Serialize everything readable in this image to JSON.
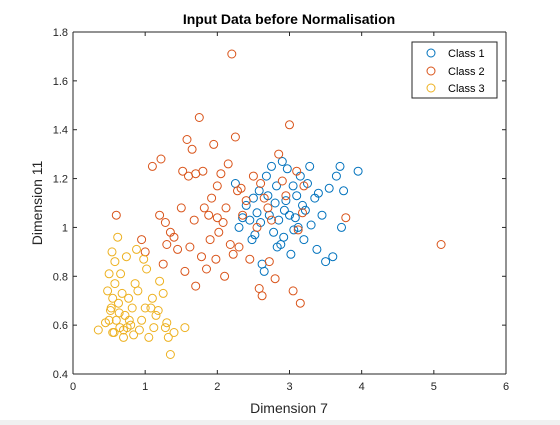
{
  "chart_data": {
    "type": "scatter",
    "title": "Input Data before Normalisation",
    "xlabel": "Dimension 7",
    "ylabel": "Dimension 11",
    "xlim": [
      0,
      6
    ],
    "ylim": [
      0.4,
      1.8
    ],
    "xticks": [
      "0",
      "1",
      "2",
      "3",
      "4",
      "5",
      "6"
    ],
    "yticks": [
      "0.4",
      "0.6",
      "0.8",
      "1",
      "1.2",
      "1.4",
      "1.6",
      "1.8"
    ],
    "grid": false,
    "legend_position": "top-right",
    "series": [
      {
        "name": "Class 1",
        "color": "#0072BD",
        "points": [
          [
            2.3,
            1.0
          ],
          [
            2.35,
            1.04
          ],
          [
            2.4,
            1.09
          ],
          [
            2.45,
            1.03
          ],
          [
            2.5,
            1.12
          ],
          [
            2.52,
            0.97
          ],
          [
            2.55,
            1.06
          ],
          [
            2.58,
            1.15
          ],
          [
            2.6,
            1.02
          ],
          [
            2.62,
            0.85
          ],
          [
            2.65,
            0.82
          ],
          [
            2.68,
            1.21
          ],
          [
            2.7,
            1.13
          ],
          [
            2.72,
            1.05
          ],
          [
            2.75,
            1.25
          ],
          [
            2.78,
            0.98
          ],
          [
            2.8,
            1.1
          ],
          [
            2.82,
            1.17
          ],
          [
            2.85,
            1.03
          ],
          [
            2.88,
            0.93
          ],
          [
            2.9,
            1.27
          ],
          [
            2.92,
            0.96
          ],
          [
            2.95,
            1.11
          ],
          [
            2.97,
            1.24
          ],
          [
            3.0,
            1.05
          ],
          [
            3.02,
            0.89
          ],
          [
            3.05,
            1.17
          ],
          [
            3.08,
            1.04
          ],
          [
            3.1,
            1.13
          ],
          [
            3.12,
            1.0
          ],
          [
            3.15,
            1.21
          ],
          [
            3.18,
            1.09
          ],
          [
            3.2,
            0.95
          ],
          [
            3.22,
            1.07
          ],
          [
            3.25,
            1.18
          ],
          [
            3.28,
            1.25
          ],
          [
            3.3,
            1.01
          ],
          [
            3.35,
            1.12
          ],
          [
            3.38,
            0.91
          ],
          [
            3.4,
            1.14
          ],
          [
            3.45,
            1.05
          ],
          [
            3.5,
            0.86
          ],
          [
            3.55,
            1.16
          ],
          [
            3.6,
            0.88
          ],
          [
            3.65,
            1.21
          ],
          [
            3.7,
            1.25
          ],
          [
            3.72,
            1.0
          ],
          [
            3.75,
            1.15
          ],
          [
            3.95,
            1.23
          ],
          [
            2.25,
            1.18
          ],
          [
            2.48,
            0.95
          ],
          [
            2.83,
            0.92
          ],
          [
            3.06,
            0.99
          ],
          [
            2.93,
            1.07
          ]
        ]
      },
      {
        "name": "Class 2",
        "color": "#D95319",
        "points": [
          [
            0.6,
            1.05
          ],
          [
            0.95,
            0.95
          ],
          [
            1.0,
            0.9
          ],
          [
            1.1,
            1.25
          ],
          [
            1.2,
            1.05
          ],
          [
            1.22,
            1.28
          ],
          [
            1.25,
            0.85
          ],
          [
            1.28,
            1.02
          ],
          [
            1.3,
            0.93
          ],
          [
            1.35,
            0.98
          ],
          [
            1.4,
            0.96
          ],
          [
            1.45,
            0.91
          ],
          [
            1.5,
            1.08
          ],
          [
            1.52,
            1.23
          ],
          [
            1.55,
            0.82
          ],
          [
            1.58,
            1.36
          ],
          [
            1.6,
            1.21
          ],
          [
            1.62,
            0.92
          ],
          [
            1.65,
            1.32
          ],
          [
            1.68,
            1.03
          ],
          [
            1.7,
            0.76
          ],
          [
            1.75,
            1.45
          ],
          [
            1.78,
            0.88
          ],
          [
            1.8,
            1.23
          ],
          [
            1.82,
            1.08
          ],
          [
            1.85,
            0.83
          ],
          [
            1.88,
            1.05
          ],
          [
            1.9,
            0.95
          ],
          [
            1.92,
            1.12
          ],
          [
            1.95,
            1.34
          ],
          [
            1.98,
            0.87
          ],
          [
            2.0,
            1.17
          ],
          [
            2.02,
            0.98
          ],
          [
            2.05,
            1.22
          ],
          [
            2.08,
            1.02
          ],
          [
            2.1,
            0.8
          ],
          [
            2.12,
            1.08
          ],
          [
            2.15,
            1.26
          ],
          [
            2.18,
            0.93
          ],
          [
            2.2,
            1.71
          ],
          [
            2.22,
            0.89
          ],
          [
            2.25,
            1.37
          ],
          [
            2.28,
            1.15
          ],
          [
            2.3,
            0.92
          ],
          [
            2.33,
            1.16
          ],
          [
            2.35,
            1.05
          ],
          [
            2.4,
            1.11
          ],
          [
            2.45,
            0.87
          ],
          [
            2.5,
            1.21
          ],
          [
            2.55,
            1.0
          ],
          [
            2.58,
            0.75
          ],
          [
            2.6,
            1.18
          ],
          [
            2.62,
            0.72
          ],
          [
            2.65,
            1.12
          ],
          [
            2.7,
            1.08
          ],
          [
            2.72,
            0.86
          ],
          [
            2.75,
            1.03
          ],
          [
            2.8,
            0.79
          ],
          [
            2.85,
            1.3
          ],
          [
            2.9,
            1.19
          ],
          [
            2.95,
            1.13
          ],
          [
            3.0,
            1.42
          ],
          [
            3.05,
            0.74
          ],
          [
            3.1,
            1.23
          ],
          [
            3.12,
            0.99
          ],
          [
            3.15,
            0.69
          ],
          [
            3.18,
            1.06
          ],
          [
            3.2,
            1.17
          ],
          [
            3.78,
            1.04
          ],
          [
            5.1,
            0.93
          ],
          [
            1.7,
            1.22
          ],
          [
            2.0,
            1.04
          ]
        ]
      },
      {
        "name": "Class 3",
        "color": "#EDB120",
        "points": [
          [
            0.35,
            0.58
          ],
          [
            0.45,
            0.61
          ],
          [
            0.48,
            0.74
          ],
          [
            0.5,
            0.81
          ],
          [
            0.52,
            0.66
          ],
          [
            0.54,
            0.9
          ],
          [
            0.55,
            0.71
          ],
          [
            0.57,
            0.57
          ],
          [
            0.58,
            0.86
          ],
          [
            0.6,
            0.62
          ],
          [
            0.62,
            0.96
          ],
          [
            0.63,
            0.69
          ],
          [
            0.65,
            0.59
          ],
          [
            0.66,
            0.81
          ],
          [
            0.68,
            0.73
          ],
          [
            0.7,
            0.55
          ],
          [
            0.72,
            0.64
          ],
          [
            0.74,
            0.88
          ],
          [
            0.75,
            0.59
          ],
          [
            0.77,
            0.71
          ],
          [
            0.78,
            0.62
          ],
          [
            0.8,
            0.6
          ],
          [
            0.82,
            0.67
          ],
          [
            0.84,
            0.56
          ],
          [
            0.86,
            0.77
          ],
          [
            0.88,
            0.91
          ],
          [
            0.9,
            0.74
          ],
          [
            0.92,
            0.58
          ],
          [
            0.95,
            0.62
          ],
          [
            1.0,
            0.67
          ],
          [
            1.02,
            0.83
          ],
          [
            1.05,
            0.55
          ],
          [
            1.1,
            0.71
          ],
          [
            1.12,
            0.59
          ],
          [
            1.15,
            0.64
          ],
          [
            1.18,
            0.66
          ],
          [
            1.2,
            0.78
          ],
          [
            1.25,
            0.73
          ],
          [
            1.28,
            0.59
          ],
          [
            1.3,
            0.61
          ],
          [
            1.32,
            0.55
          ],
          [
            1.35,
            0.48
          ],
          [
            1.4,
            0.57
          ],
          [
            1.55,
            0.59
          ],
          [
            0.5,
            0.62
          ],
          [
            0.55,
            0.57
          ],
          [
            0.7,
            0.58
          ],
          [
            0.58,
            0.77
          ],
          [
            0.53,
            0.67
          ],
          [
            0.64,
            0.65
          ],
          [
            1.08,
            0.67
          ],
          [
            0.98,
            0.87
          ]
        ]
      }
    ]
  }
}
